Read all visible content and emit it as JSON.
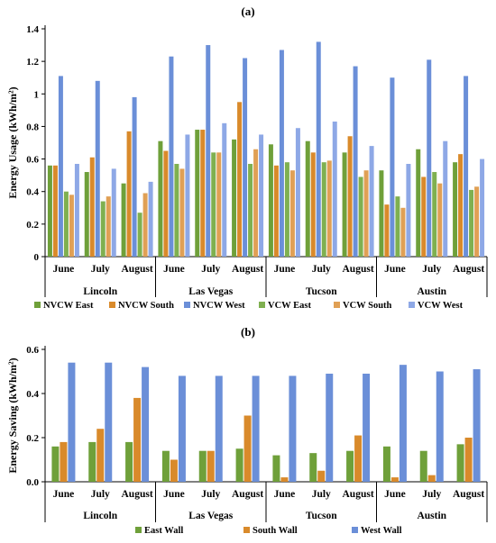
{
  "chart_data": [
    {
      "type": "bar",
      "panel_label": "(a)",
      "ylabel": "Energy Usage (kWh/m²)",
      "ylim": [
        0,
        1.4
      ],
      "yticks": [
        "0",
        "0.2",
        "0.4",
        "0.6",
        "0.8",
        "1",
        "1.2",
        "1.4"
      ],
      "grid": false,
      "legend_position": "bottom",
      "groups": [
        "Lincoln",
        "Las Vegas",
        "Tucson",
        "Austin"
      ],
      "months": [
        "June",
        "July",
        "August"
      ],
      "series": [
        {
          "name": "NVCW East",
          "color": "#6fa03a",
          "values": [
            0.56,
            0.52,
            0.45,
            0.71,
            0.78,
            0.72,
            0.69,
            0.71,
            0.64,
            0.53,
            0.66,
            0.58
          ]
        },
        {
          "name": "NVCW South",
          "color": "#d98a2b",
          "values": [
            0.56,
            0.61,
            0.77,
            0.65,
            0.78,
            0.95,
            0.56,
            0.64,
            0.74,
            0.32,
            0.49,
            0.63
          ]
        },
        {
          "name": "NVCW West",
          "color": "#6b8fd8",
          "values": [
            1.11,
            1.08,
            0.98,
            1.23,
            1.3,
            1.22,
            1.27,
            1.32,
            1.17,
            1.1,
            1.21,
            1.11
          ]
        },
        {
          "name": "VCW  East",
          "color": "#7fb050",
          "values": [
            0.4,
            0.34,
            0.27,
            0.57,
            0.64,
            0.57,
            0.58,
            0.58,
            0.49,
            0.37,
            0.52,
            0.41
          ]
        },
        {
          "name": "VCW  South",
          "color": "#e0a055",
          "values": [
            0.38,
            0.37,
            0.39,
            0.54,
            0.64,
            0.66,
            0.53,
            0.59,
            0.53,
            0.3,
            0.45,
            0.43
          ]
        },
        {
          "name": "VCW  West",
          "color": "#8ea8e6",
          "values": [
            0.57,
            0.54,
            0.46,
            0.75,
            0.82,
            0.75,
            0.79,
            0.83,
            0.68,
            0.57,
            0.71,
            0.6
          ]
        }
      ]
    },
    {
      "type": "bar",
      "panel_label": "(b)",
      "ylabel": "Energy Saving (kWh/m²)",
      "ylim": [
        0,
        0.6
      ],
      "yticks": [
        "0.0",
        "0.2",
        "0.4",
        "0.6"
      ],
      "grid": false,
      "legend_position": "bottom",
      "groups": [
        "Lincoln",
        "Las Vegas",
        "Tucson",
        "Austin"
      ],
      "months": [
        "June",
        "July",
        "August"
      ],
      "series": [
        {
          "name": "East Wall",
          "color": "#6fa03a",
          "values": [
            0.16,
            0.18,
            0.18,
            0.14,
            0.14,
            0.15,
            0.12,
            0.13,
            0.14,
            0.16,
            0.14,
            0.17
          ]
        },
        {
          "name": "South Wall",
          "color": "#d98a2b",
          "values": [
            0.18,
            0.24,
            0.38,
            0.1,
            0.14,
            0.3,
            0.02,
            0.05,
            0.21,
            0.02,
            0.03,
            0.2
          ]
        },
        {
          "name": "West Wall",
          "color": "#6b8fd8",
          "values": [
            0.54,
            0.54,
            0.52,
            0.48,
            0.48,
            0.48,
            0.48,
            0.49,
            0.49,
            0.53,
            0.5,
            0.51
          ]
        }
      ]
    }
  ]
}
